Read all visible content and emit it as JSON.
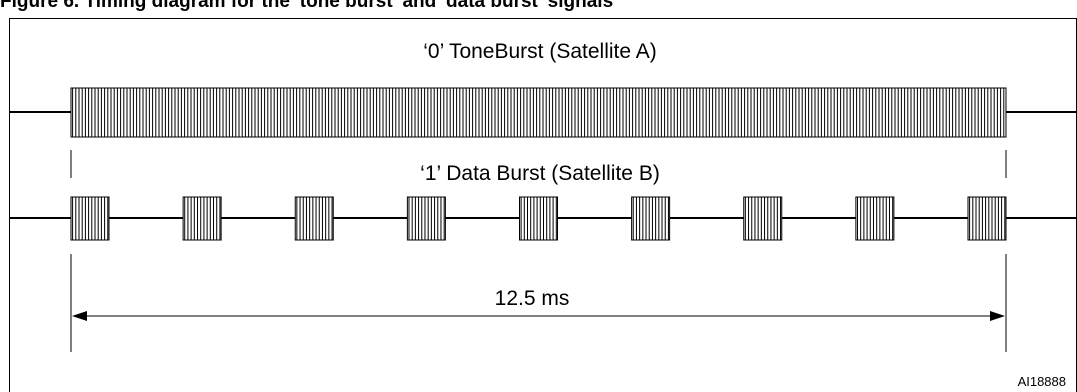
{
  "figure": {
    "caption": "Figure 6. Timing diagram for the 'tone burst' and 'data burst' signals"
  },
  "tone_burst": {
    "label": "‘0’ ToneBurst (Satellite A)"
  },
  "data_burst": {
    "label": "‘1’ Data Burst (Satellite B)",
    "burst_count": 9
  },
  "duration": {
    "label": "12.5 ms"
  },
  "figure_id": "AI18888",
  "colors": {
    "line": "#000000",
    "background": "#ffffff"
  }
}
